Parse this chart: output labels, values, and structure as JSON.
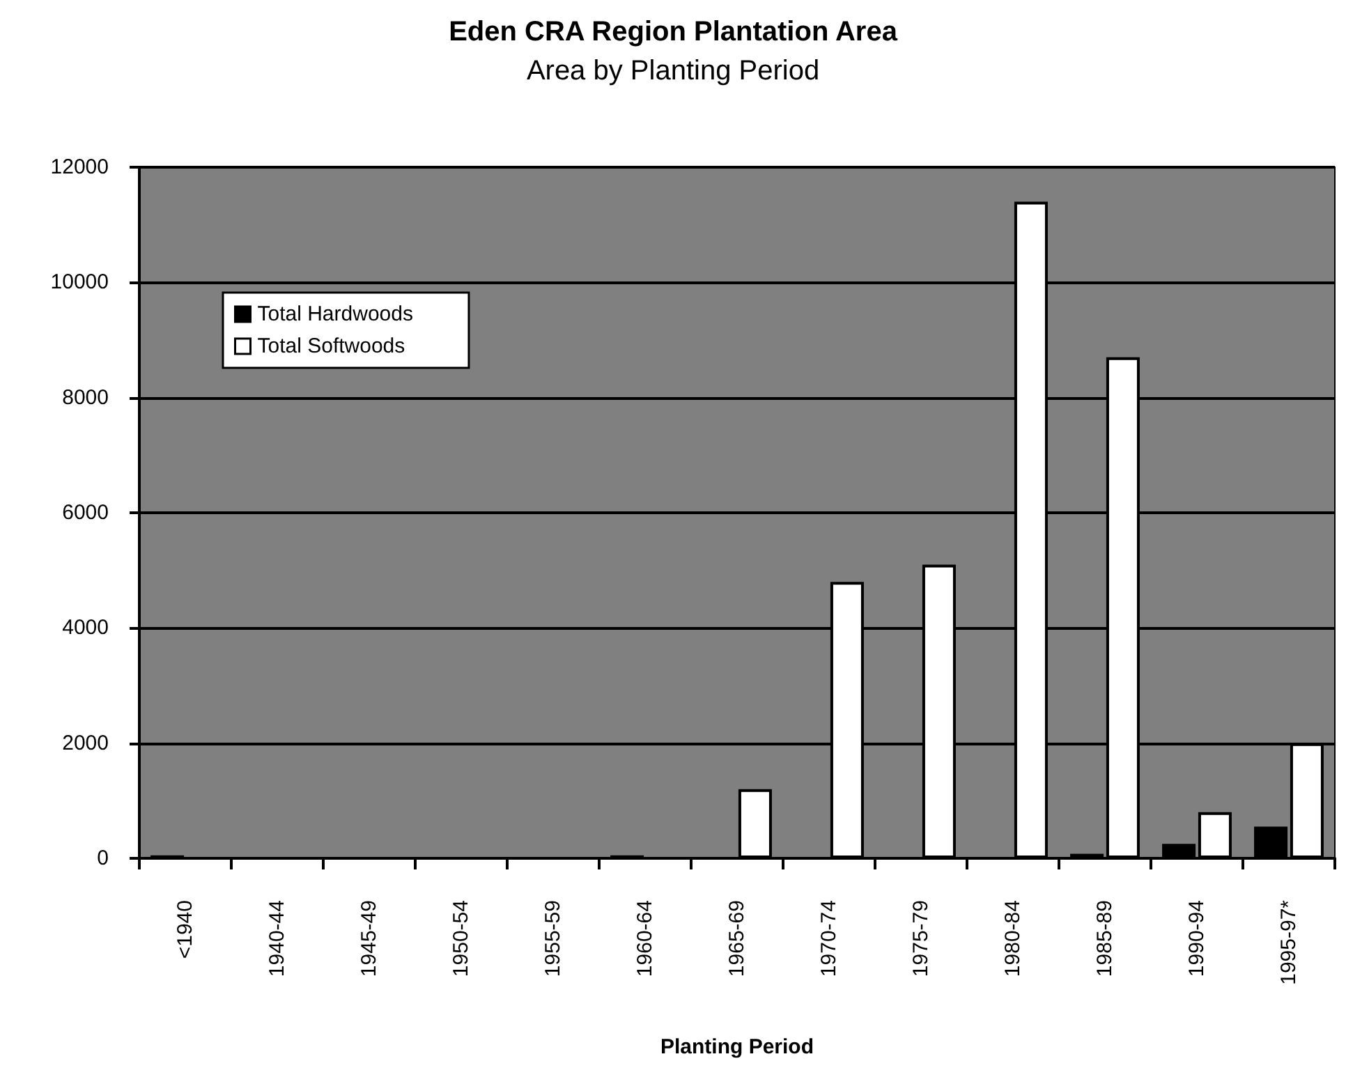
{
  "chart_data": {
    "type": "bar",
    "title": "Eden CRA Region Plantation Area",
    "subtitle": "Area by Planting Period",
    "xlabel": "Planting Period",
    "categories": [
      "<1940",
      "1940-44",
      "1945-49",
      "1950-54",
      "1955-59",
      "1960-64",
      "1965-69",
      "1970-74",
      "1975-79",
      "1980-84",
      "1985-89",
      "1990-94",
      "1995-97*"
    ],
    "series": [
      {
        "name": "Total Hardwoods",
        "color": "#000000",
        "values": [
          50,
          null,
          null,
          null,
          null,
          50,
          null,
          null,
          null,
          null,
          80,
          250,
          550
        ]
      },
      {
        "name": "Total Softwoods",
        "color": "#ffffff",
        "values": [
          null,
          null,
          null,
          null,
          null,
          null,
          1200,
          4800,
          5100,
          11400,
          8700,
          800,
          2000
        ]
      }
    ],
    "ylim": [
      0,
      12000
    ],
    "yticks": [
      0,
      2000,
      4000,
      6000,
      8000,
      10000,
      12000
    ],
    "grid": "y",
    "legend": "top left"
  }
}
